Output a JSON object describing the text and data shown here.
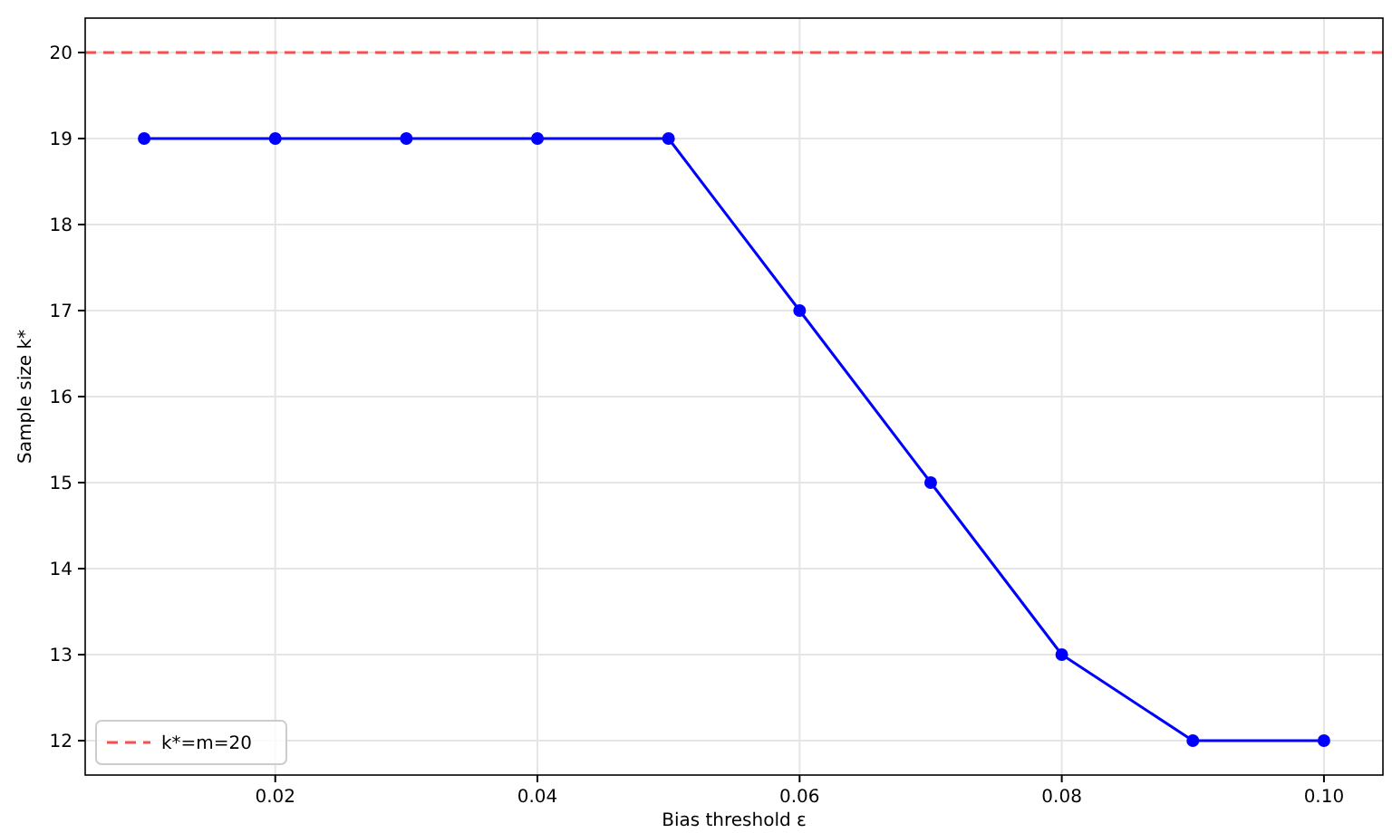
{
  "chart_data": {
    "type": "line",
    "xlabel": "Bias threshold ε",
    "ylabel": "Sample size k*",
    "x": [
      0.01,
      0.02,
      0.03,
      0.04,
      0.05,
      0.06,
      0.07,
      0.08,
      0.09,
      0.1
    ],
    "series": [
      {
        "color": "#0000ff",
        "values": [
          19,
          19,
          19,
          19,
          19,
          17,
          15,
          13,
          12,
          12
        ]
      }
    ],
    "xlim": [
      0.0055,
      0.1045
    ],
    "xticks": [
      {
        "value": 0.02,
        "label": "0.02"
      },
      {
        "value": 0.04,
        "label": "0.04"
      },
      {
        "value": 0.06,
        "label": "0.06"
      },
      {
        "value": 0.08,
        "label": "0.08"
      },
      {
        "value": 0.1,
        "label": "0.10"
      }
    ],
    "ylim": [
      11.6,
      20.4
    ],
    "yticks": [
      12,
      13,
      14,
      15,
      16,
      17,
      18,
      19,
      20
    ],
    "ref_lines": [
      {
        "axis": "y",
        "value": 20,
        "label": "k*=m=20",
        "color": "#ff4d4d",
        "line_style": "dashed"
      }
    ],
    "grid": true,
    "legend": "bottom left",
    "marker": "circle",
    "line_style": "solid"
  }
}
